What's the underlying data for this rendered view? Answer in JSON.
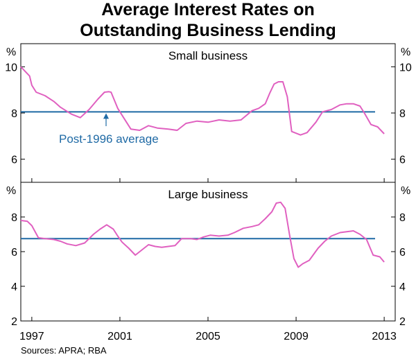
{
  "title_line1": "Average Interest Rates on",
  "title_line2": "Outstanding Business Lending",
  "source": "Sources: APRA; RBA",
  "colors": {
    "series": "#e060c0",
    "average": "#1f6aa5",
    "annotation": "#1f6aa5"
  },
  "chart_data": [
    {
      "type": "line",
      "title": "Small business",
      "unit": "%",
      "ylim": [
        5,
        11
      ],
      "yticks": [
        "10",
        "8",
        "6"
      ],
      "xlim": [
        1996.5,
        2013.5
      ],
      "xticks": [
        "1997",
        "2001",
        "2005",
        "2009",
        "2013"
      ],
      "average": {
        "label": "Post-1996 average",
        "value": 8.05
      },
      "series": [
        {
          "x": [
            1996.5,
            1996.9,
            1997.0,
            1997.2,
            1997.6,
            1998.0,
            1998.3,
            1998.8,
            1999.2,
            1999.6,
            2000.0,
            2000.3,
            2000.5,
            2000.6,
            2000.9,
            2001.1,
            2001.5,
            2001.9,
            2002.3,
            2002.7,
            2003.2,
            2003.6,
            2004.0,
            2004.5,
            2005.0,
            2005.5,
            2006.0,
            2006.5,
            2007.0,
            2007.3,
            2007.6,
            2007.8,
            2008.0,
            2008.2,
            2008.4,
            2008.6,
            2008.8,
            2009.2,
            2009.5,
            2009.9,
            2010.2,
            2010.6,
            2011.0,
            2011.3,
            2011.6,
            2011.9,
            2012.1,
            2012.4,
            2012.7,
            2013.0
          ],
          "values": [
            10.0,
            9.6,
            9.2,
            8.9,
            8.75,
            8.5,
            8.25,
            7.95,
            7.8,
            8.15,
            8.6,
            8.9,
            8.92,
            8.9,
            8.2,
            7.9,
            7.3,
            7.25,
            7.45,
            7.35,
            7.3,
            7.25,
            7.55,
            7.65,
            7.6,
            7.7,
            7.65,
            7.7,
            8.1,
            8.2,
            8.4,
            8.85,
            9.25,
            9.35,
            9.35,
            8.7,
            7.2,
            7.05,
            7.15,
            7.6,
            8.05,
            8.15,
            8.35,
            8.4,
            8.4,
            8.3,
            8.0,
            7.5,
            7.4,
            7.1
          ]
        }
      ]
    },
    {
      "type": "line",
      "title": "Large business",
      "unit": "%",
      "ylim": [
        2,
        10
      ],
      "yticks": [
        "8",
        "6",
        "4",
        "2"
      ],
      "xlim": [
        1996.5,
        2013.5
      ],
      "xticks": [
        "1997",
        "2001",
        "2005",
        "2009",
        "2013"
      ],
      "average": {
        "value": 6.75
      },
      "series": [
        {
          "x": [
            1996.5,
            1996.8,
            1997.0,
            1997.3,
            1997.6,
            1998.0,
            1998.3,
            1998.6,
            1999.0,
            1999.4,
            1999.8,
            2000.1,
            2000.4,
            2000.7,
            2000.9,
            2001.1,
            2001.4,
            2001.7,
            2002.0,
            2002.3,
            2002.6,
            2002.9,
            2003.2,
            2003.5,
            2003.8,
            2004.2,
            2004.5,
            2004.8,
            2005.1,
            2005.5,
            2005.9,
            2006.2,
            2006.6,
            2007.0,
            2007.3,
            2007.6,
            2007.9,
            2008.1,
            2008.3,
            2008.5,
            2008.7,
            2008.9,
            2009.1,
            2009.3,
            2009.6,
            2010.0,
            2010.3,
            2010.6,
            2011.0,
            2011.3,
            2011.6,
            2011.9,
            2012.2,
            2012.5,
            2012.8,
            2013.0
          ],
          "values": [
            7.8,
            7.75,
            7.5,
            6.8,
            6.75,
            6.7,
            6.6,
            6.45,
            6.35,
            6.5,
            7.0,
            7.3,
            7.55,
            7.3,
            6.9,
            6.55,
            6.2,
            5.8,
            6.1,
            6.4,
            6.3,
            6.25,
            6.3,
            6.35,
            6.75,
            6.75,
            6.7,
            6.85,
            6.95,
            6.9,
            6.95,
            7.1,
            7.35,
            7.45,
            7.55,
            7.9,
            8.3,
            8.8,
            8.85,
            8.5,
            7.0,
            5.6,
            5.1,
            5.3,
            5.5,
            6.2,
            6.6,
            6.9,
            7.1,
            7.15,
            7.2,
            7.0,
            6.7,
            5.8,
            5.7,
            5.4
          ]
        }
      ]
    }
  ]
}
